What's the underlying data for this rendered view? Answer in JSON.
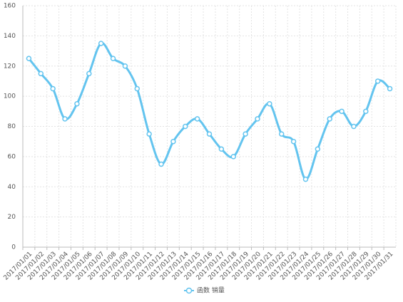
{
  "chart_data": {
    "type": "line",
    "categories": [
      "2017/01/01",
      "2017/01/02",
      "2017/01/03",
      "2017/01/04",
      "2017/01/05",
      "2017/01/06",
      "2017/01/07",
      "2017/01/08",
      "2017/01/09",
      "2017/01/10",
      "2017/01/11",
      "2017/01/12",
      "2017/01/13",
      "2017/01/14",
      "2017/01/15",
      "2017/01/16",
      "2017/01/17",
      "2017/01/18",
      "2017/01/19",
      "2017/01/20",
      "2017/01/21",
      "2017/01/22",
      "2017/01/23",
      "2017/01/24",
      "2017/01/25",
      "2017/01/26",
      "2017/01/27",
      "2017/01/28",
      "2017/01/29",
      "2017/01/30",
      "2017/01/31"
    ],
    "series": [
      {
        "name": "函数 销量",
        "color": "#63c4ef",
        "values": [
          125,
          115,
          105,
          85,
          95,
          115,
          135,
          125,
          120,
          105,
          75,
          55,
          70,
          80,
          85,
          75,
          65,
          60,
          75,
          85,
          95,
          75,
          70,
          45,
          65,
          85,
          90,
          80,
          90,
          110,
          105
        ]
      }
    ],
    "ylim": [
      0,
      160
    ],
    "yticks": [
      0,
      20,
      40,
      60,
      80,
      100,
      120,
      140,
      160
    ],
    "grid": true,
    "smooth": true,
    "legend": "bottom"
  }
}
